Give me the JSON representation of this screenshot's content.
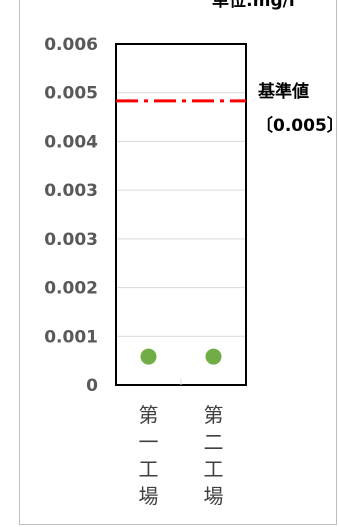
{
  "chart_data": {
    "type": "scatter",
    "unit_label": "単位:mg/l",
    "categories": [
      "第一工場",
      "第二工場"
    ],
    "values": [
      0.0005,
      0.0005
    ],
    "ylim": [
      0,
      0.006
    ],
    "yticks": [
      "0",
      "0.001",
      "0.002",
      "0.003",
      "0.003",
      "0.004",
      "0.005",
      "0.006"
    ],
    "grid": true,
    "reference_line": {
      "value": 0.005,
      "label": "基準値",
      "sublabel": "〔0.005〕",
      "style": "dash-dot"
    },
    "colors": {
      "points": "#70ad47",
      "reference": "#ff0000",
      "grid": "#d9d9d9",
      "plot_border": "#000000"
    }
  }
}
